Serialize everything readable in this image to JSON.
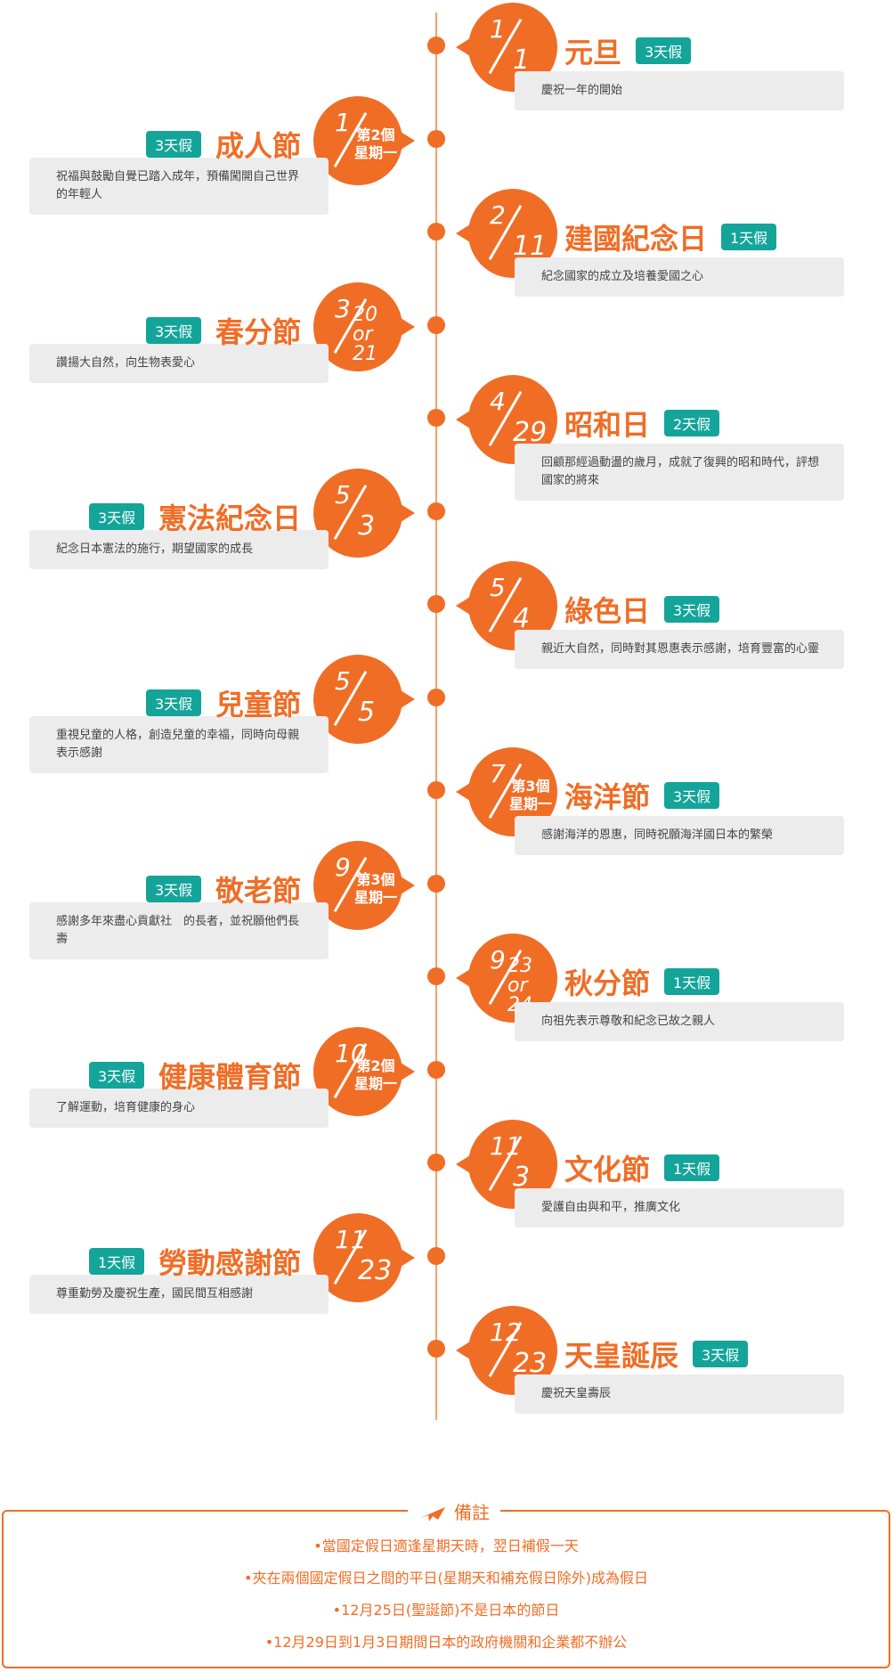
{
  "holidays": [
    {
      "month": "1",
      "day": "1",
      "name": "元旦",
      "badge": "3天假",
      "desc": "慶祝一年的開始",
      "side": "right"
    },
    {
      "month": "1",
      "day": "第2個\n星期一",
      "name": "成人節",
      "badge": "3天假",
      "desc": "祝福與鼓勵自覺已踏入成年，預備闖開自己世界的年輕人",
      "side": "left"
    },
    {
      "month": "2",
      "day": "11",
      "name": "建國紀念日",
      "badge": "1天假",
      "desc": "紀念國家的成立及培養愛國之心",
      "side": "right"
    },
    {
      "month": "3",
      "day": "20\nor\n21",
      "name": "春分節",
      "badge": "3天假",
      "desc": "讚揚大自然，向生物表愛心",
      "side": "left"
    },
    {
      "month": "4",
      "day": "29",
      "name": "昭和日",
      "badge": "2天假",
      "desc": "回顧那經過動盪的歲月，成就了復興的昭和時代，評想國家的將來",
      "side": "right"
    },
    {
      "month": "5",
      "day": "3",
      "name": "憲法紀念日",
      "badge": "3天假",
      "desc": "紀念日本憲法的施行，期望國家的成長",
      "side": "left"
    },
    {
      "month": "5",
      "day": "4",
      "name": "綠色日",
      "badge": "3天假",
      "desc": "親近大自然，同時對其恩惠表示感謝，培育豐富的心靈",
      "side": "right"
    },
    {
      "month": "5",
      "day": "5",
      "name": "兒童節",
      "badge": "3天假",
      "desc": "重視兒童的人格，創造兒童的幸福，同時向母親表示感謝",
      "side": "left"
    },
    {
      "month": "7",
      "day": "第3個\n星期一",
      "name": "海洋節",
      "badge": "3天假",
      "desc": "感謝海洋的恩惠，同時祝願海洋國日本的繁榮",
      "side": "right"
    },
    {
      "month": "9",
      "day": "第3個\n星期一",
      "name": "敬老節",
      "badge": "3天假",
      "desc": "感謝多年來盡心貢獻社　的長者，並祝願他們長壽",
      "side": "left"
    },
    {
      "month": "9",
      "day": "23\nor\n24",
      "name": "秋分節",
      "badge": "1天假",
      "desc": "向祖先表示尊敬和紀念已故之親人",
      "side": "right"
    },
    {
      "month": "10",
      "day": "第2個\n星期一",
      "name": "健康體育節",
      "badge": "3天假",
      "desc": "了解運動，培育健康的身心",
      "side": "left"
    },
    {
      "month": "11",
      "day": "3",
      "name": "文化節",
      "badge": "1天假",
      "desc": "愛護自由與和平，推廣文化",
      "side": "right"
    },
    {
      "month": "11",
      "day": "23",
      "name": "勞動感謝節",
      "badge": "1天假",
      "desc": "尊重勤勞及慶祝生產，國民間互相感謝",
      "side": "left"
    },
    {
      "month": "12",
      "day": "23",
      "name": "天皇誕辰",
      "badge": "3天假",
      "desc": "慶祝天皇壽辰",
      "side": "right"
    }
  ],
  "notes": {
    "title": "備註",
    "items": [
      "•當國定假日適逢星期天時，翌日補假一天",
      "•夾在兩個國定假日之間的平日(星期天和補充假日除外)成為假日",
      "•12月25日(聖誕節)不是日本的節日",
      "•12月29日到1月3日期間日本的政府機關和企業都不辦公"
    ]
  },
  "colors": {
    "accent": "#f06d26",
    "badge": "#14a49a",
    "desc_bg": "#ececec"
  }
}
